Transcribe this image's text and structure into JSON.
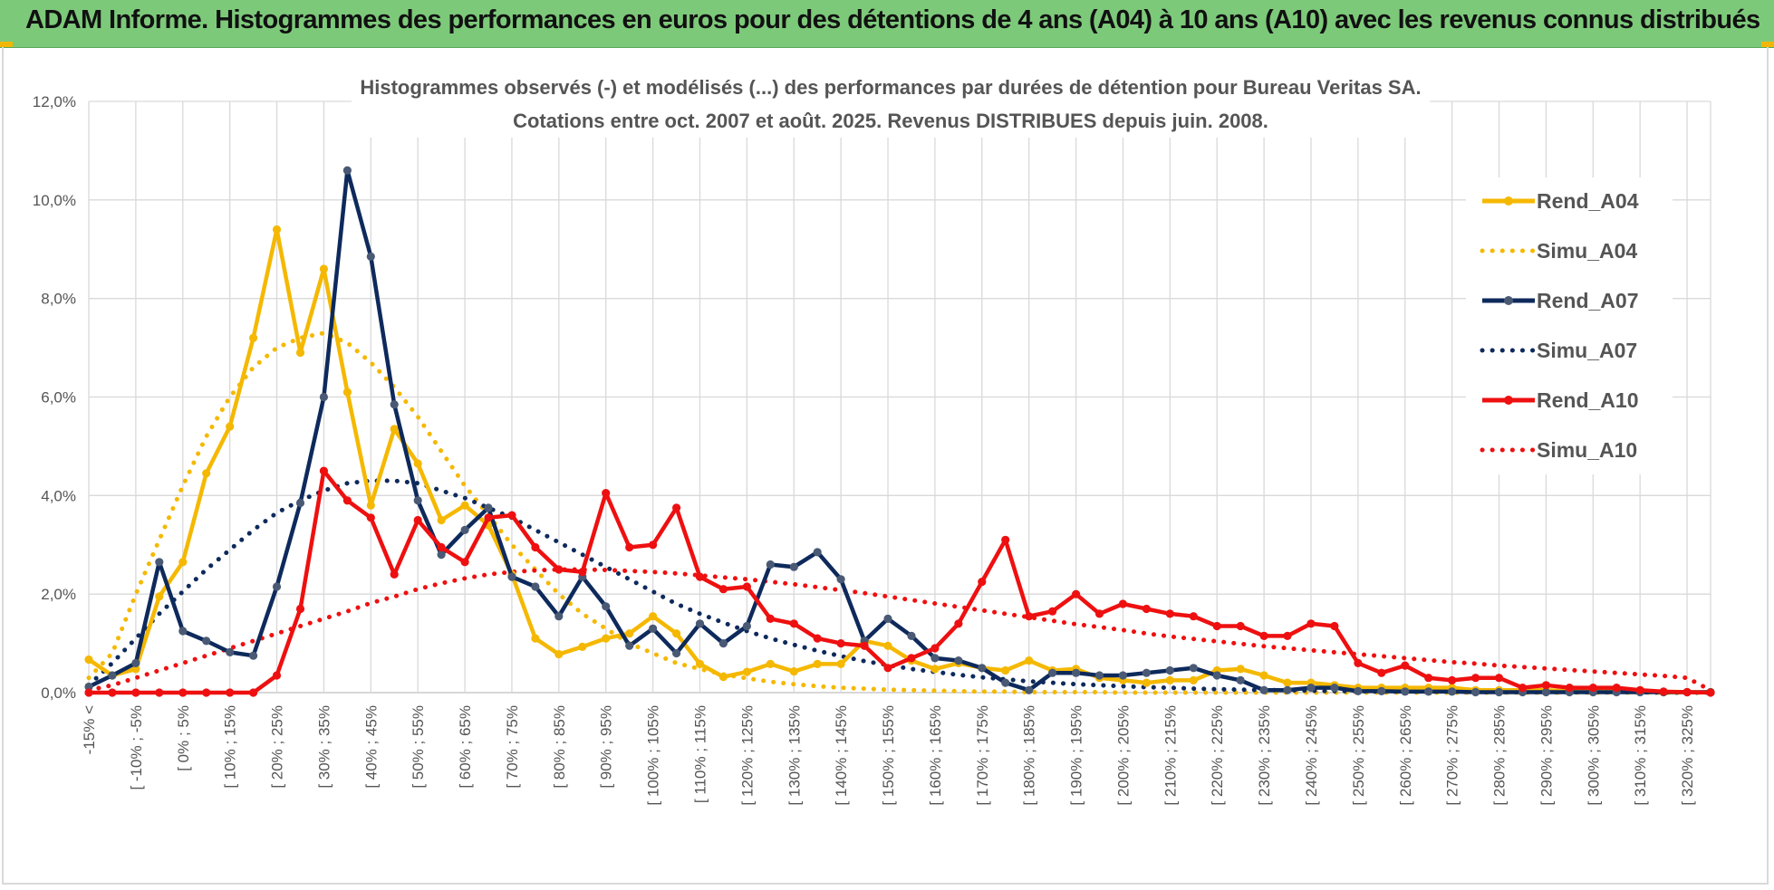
{
  "banner": {
    "title": "ADAM Informe. Histogrammes des performances en euros pour des détentions de 4 ans (A04) à 10 ans (A10) avec les revenus connus distribués"
  },
  "colors": {
    "banner_bg": "#7dc97a",
    "accent_corner": "#f2b705",
    "A04": "#f5b800",
    "A07": "#0e2a5c",
    "A10": "#ee1010"
  },
  "chart_data": {
    "type": "line",
    "title_lines": [
      "Histogrammes observés (-) et modélisés (...) des performances par durées de détention pour Bureau Veritas SA.",
      "Cotations entre oct. 2007 et août. 2025. Revenus DISTRIBUES depuis juin. 2008."
    ],
    "xlabel": "",
    "ylabel": "",
    "ylim": [
      0,
      0.12
    ],
    "y_ticks": [
      "0,0%",
      "2,0%",
      "4,0%",
      "6,0%",
      "8,0%",
      "10,0%",
      "12,0%"
    ],
    "grid": true,
    "legend_position": "right",
    "x_tick_labels": [
      "-15% <",
      "[ -10% ; -5%",
      "[ 0% ; 5%",
      "[ 10% ; 15%",
      "[ 20% ; 25%",
      "[ 30% ; 35%",
      "[ 40% ; 45%",
      "[ 50% ; 55%",
      "[ 60% ; 65%",
      "[ 70% ; 75%",
      "[ 80% ; 85%",
      "[ 90% ; 95%",
      "[ 100% ; 105%",
      "[ 110% ; 115%",
      "[ 120% ; 125%",
      "[ 130% ; 135%",
      "[ 140% ; 145%",
      "[ 150% ; 155%",
      "[ 160% ; 165%",
      "[ 170% ; 175%",
      "[ 180% ; 185%",
      "[ 190% ; 195%",
      "[ 200% ; 205%",
      "[ 210% ; 215%",
      "[ 220% ; 225%",
      "[ 230% ; 235%",
      "[ 240% ; 245%",
      "[ 250% ; 255%",
      "[ 260% ; 265%",
      "[ 270% ; 275%",
      "[ 280% ; 285%",
      "[ 290% ; 295%",
      "[ 300% ; 305%",
      "[ 310% ; 315%",
      "[ 320% ; 325%"
    ],
    "series": [
      {
        "name": "Rend_A04",
        "style": "solid",
        "color": "#f5b800",
        "markers": true,
        "values": [
          0.0067,
          0.0035,
          0.0048,
          0.0195,
          0.0265,
          0.0445,
          0.054,
          0.072,
          0.094,
          0.069,
          0.086,
          0.061,
          0.038,
          0.0535,
          0.0465,
          0.035,
          0.038,
          0.034,
          0.024,
          0.011,
          0.0078,
          0.0093,
          0.011,
          0.012,
          0.0155,
          0.012,
          0.0058,
          0.0032,
          0.0042,
          0.0058,
          0.0043,
          0.0058,
          0.0058,
          0.0105,
          0.0095,
          0.0065,
          0.0048,
          0.006,
          0.005,
          0.0045,
          0.0065,
          0.0045,
          0.0048,
          0.003,
          0.0025,
          0.002,
          0.0025,
          0.0025,
          0.0045,
          0.0048,
          0.0035,
          0.002,
          0.002,
          0.0015,
          0.001,
          0.001,
          0.001,
          0.001,
          0.001,
          0.0005,
          0.0005,
          0.0005,
          0.0005,
          0.0003,
          0.0003,
          0.0002,
          0.0002,
          0.0001,
          0.0001,
          0.0001
        ]
      },
      {
        "name": "Simu_A04",
        "style": "dotted",
        "color": "#f5b800",
        "markers": false,
        "values": [
          0.003,
          0.008,
          0.02,
          0.031,
          0.042,
          0.052,
          0.06,
          0.066,
          0.07,
          0.072,
          0.073,
          0.071,
          0.067,
          0.062,
          0.056,
          0.049,
          0.042,
          0.036,
          0.03,
          0.025,
          0.02,
          0.016,
          0.013,
          0.01,
          0.008,
          0.006,
          0.0048,
          0.0037,
          0.0029,
          0.0022,
          0.0017,
          0.0013,
          0.001,
          0.0008,
          0.0006,
          0.0005,
          0.0004,
          0.0003,
          0.0002,
          0.0002,
          0.0001,
          0.0001,
          0.0001,
          0.0001,
          0.0,
          0.0,
          0.0,
          0.0,
          0.0,
          0.0,
          0.0,
          0.0,
          0.0,
          0.0,
          0.0,
          0.0,
          0.0,
          0.0,
          0.0,
          0.0,
          0.0,
          0.0,
          0.0,
          0.0,
          0.0,
          0.0,
          0.0,
          0.0,
          0.0,
          0.0
        ]
      },
      {
        "name": "Rend_A07",
        "style": "solid",
        "color": "#0e2a5c",
        "markers": true,
        "values": [
          0.0012,
          0.0035,
          0.006,
          0.0265,
          0.0125,
          0.0105,
          0.0082,
          0.0075,
          0.0215,
          0.0385,
          0.06,
          0.106,
          0.0885,
          0.0585,
          0.039,
          0.028,
          0.033,
          0.0375,
          0.0235,
          0.0215,
          0.0155,
          0.0235,
          0.0175,
          0.0095,
          0.013,
          0.008,
          0.014,
          0.01,
          0.0135,
          0.026,
          0.0255,
          0.0285,
          0.023,
          0.0105,
          0.015,
          0.0115,
          0.007,
          0.0065,
          0.005,
          0.002,
          0.0005,
          0.004,
          0.004,
          0.0035,
          0.0035,
          0.004,
          0.0045,
          0.005,
          0.0035,
          0.0025,
          0.0005,
          0.0005,
          0.001,
          0.001,
          0.0003,
          0.0003,
          0.0002,
          0.0002,
          0.0002,
          0.0001,
          0.0001,
          0.0001,
          0.0001,
          0.0001,
          0.0001,
          0.0001,
          0.0001,
          0.0001,
          0.0001,
          0.0001
        ]
      },
      {
        "name": "Simu_A07",
        "style": "dotted",
        "color": "#0e2a5c",
        "markers": false,
        "values": [
          0.0015,
          0.006,
          0.011,
          0.016,
          0.0205,
          0.025,
          0.029,
          0.033,
          0.0365,
          0.039,
          0.041,
          0.0425,
          0.043,
          0.043,
          0.0425,
          0.041,
          0.0395,
          0.0375,
          0.0355,
          0.033,
          0.0305,
          0.028,
          0.0255,
          0.023,
          0.0205,
          0.018,
          0.016,
          0.0142,
          0.0125,
          0.011,
          0.0097,
          0.0085,
          0.0074,
          0.0064,
          0.0056,
          0.0048,
          0.0042,
          0.0036,
          0.0031,
          0.0027,
          0.0023,
          0.002,
          0.0017,
          0.0015,
          0.0013,
          0.0011,
          0.001,
          0.0008,
          0.0007,
          0.0006,
          0.0005,
          0.0005,
          0.0004,
          0.0003,
          0.0003,
          0.0002,
          0.0002,
          0.0002,
          0.0002,
          0.0001,
          0.0001,
          0.0001,
          0.0001,
          0.0001,
          0.0001,
          0.0001,
          0.0001,
          0.0,
          0.0,
          0.0
        ]
      },
      {
        "name": "Rend_A10",
        "style": "solid",
        "color": "#ee1010",
        "markers": true,
        "values": [
          0.0,
          0.0,
          0.0,
          0.0,
          0.0,
          0.0,
          0.0,
          0.0,
          0.0035,
          0.017,
          0.045,
          0.039,
          0.0355,
          0.024,
          0.035,
          0.0295,
          0.0265,
          0.0355,
          0.036,
          0.0295,
          0.025,
          0.0245,
          0.0405,
          0.0295,
          0.03,
          0.0375,
          0.0235,
          0.021,
          0.0215,
          0.015,
          0.014,
          0.011,
          0.01,
          0.0095,
          0.005,
          0.007,
          0.009,
          0.014,
          0.0225,
          0.031,
          0.0155,
          0.0165,
          0.02,
          0.016,
          0.018,
          0.017,
          0.016,
          0.0155,
          0.0135,
          0.0135,
          0.0115,
          0.0115,
          0.014,
          0.0135,
          0.006,
          0.004,
          0.0055,
          0.003,
          0.0025,
          0.003,
          0.003,
          0.001,
          0.0015,
          0.001,
          0.001,
          0.001,
          0.0005,
          0.0002,
          0.0001,
          0.0
        ]
      },
      {
        "name": "Simu_A10",
        "style": "dotted",
        "color": "#ee1010",
        "markers": false,
        "values": [
          0.0005,
          0.0015,
          0.003,
          0.0045,
          0.006,
          0.0075,
          0.009,
          0.0105,
          0.012,
          0.0135,
          0.015,
          0.0165,
          0.0182,
          0.0195,
          0.021,
          0.0222,
          0.0232,
          0.024,
          0.0245,
          0.0248,
          0.025,
          0.025,
          0.0249,
          0.0247,
          0.0245,
          0.0242,
          0.0238,
          0.0234,
          0.023,
          0.0225,
          0.022,
          0.0214,
          0.0208,
          0.0202,
          0.0195,
          0.0188,
          0.0181,
          0.0174,
          0.0167,
          0.016,
          0.0153,
          0.0146,
          0.0139,
          0.0133,
          0.0127,
          0.012,
          0.0114,
          0.0109,
          0.0104,
          0.0099,
          0.0094,
          0.009,
          0.0086,
          0.0082,
          0.0078,
          0.0074,
          0.007,
          0.0066,
          0.0062,
          0.0059,
          0.0055,
          0.0052,
          0.0049,
          0.0046,
          0.0043,
          0.004,
          0.0037,
          0.0034,
          0.003,
          0.0005
        ]
      }
    ]
  }
}
